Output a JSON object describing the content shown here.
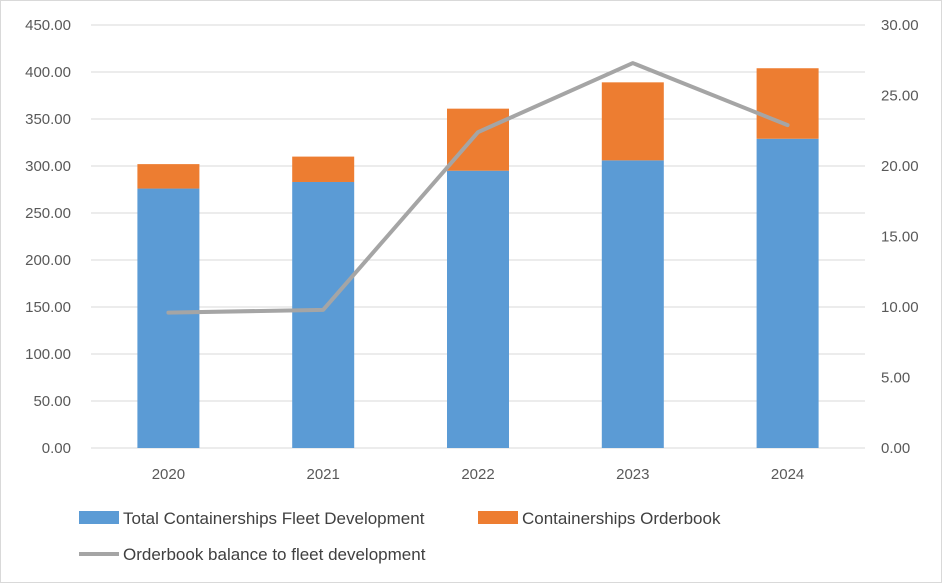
{
  "chart_data": {
    "type": "bar",
    "stacked": true,
    "categories": [
      "2020",
      "2021",
      "2022",
      "2023",
      "2024"
    ],
    "series": [
      {
        "name": "Total Containerships Fleet Development",
        "kind": "bar",
        "axis": "left",
        "color": "#5b9bd5",
        "values": [
          276,
          283,
          295,
          306,
          329
        ]
      },
      {
        "name": "Containerships Orderbook",
        "kind": "bar",
        "axis": "left",
        "color": "#ed7d31",
        "values": [
          26,
          27,
          66,
          83,
          75
        ]
      },
      {
        "name": "Orderbook balance to fleet development",
        "kind": "line",
        "axis": "right",
        "color": "#a5a5a5",
        "values": [
          9.6,
          9.8,
          22.4,
          27.3,
          22.9
        ]
      }
    ],
    "y_left": {
      "min": 0,
      "max": 450,
      "step": 50,
      "ticks": [
        "0.00",
        "50.00",
        "100.00",
        "150.00",
        "200.00",
        "250.00",
        "300.00",
        "350.00",
        "400.00",
        "450.00"
      ]
    },
    "y_right": {
      "min": 0,
      "max": 30,
      "step": 5,
      "ticks": [
        "0.00",
        "5.00",
        "10.00",
        "15.00",
        "20.00",
        "25.00",
        "30.00"
      ]
    },
    "grid": true,
    "legend_position": "bottom",
    "title": ""
  }
}
